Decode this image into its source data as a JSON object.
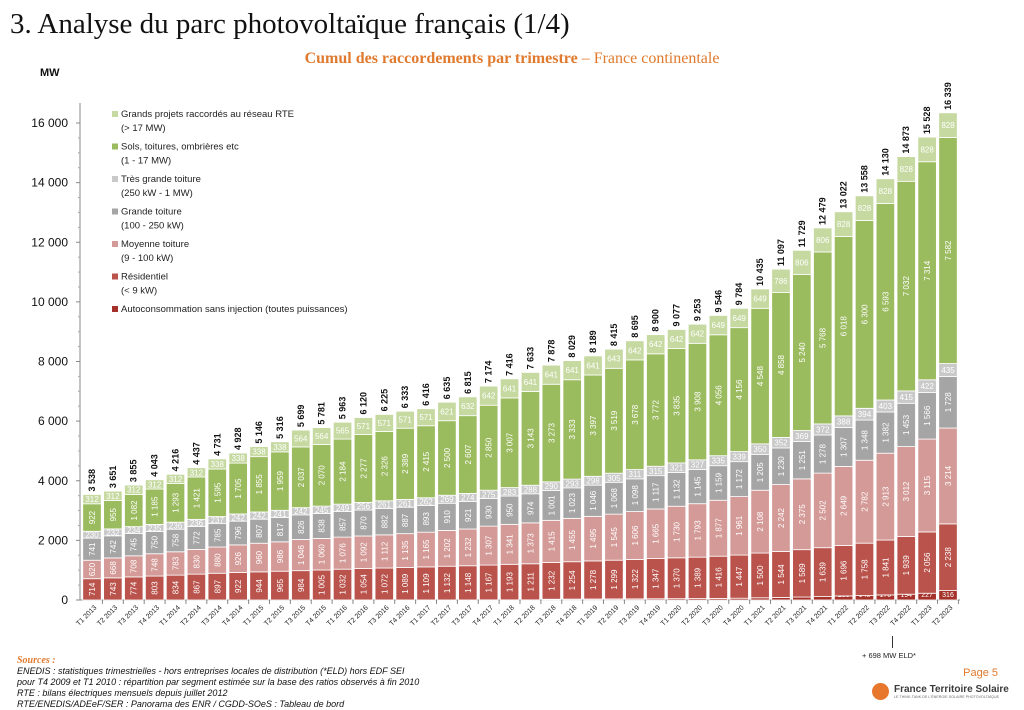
{
  "title": "3. Analyse du parc photovoltaïque français (1/4)",
  "subtitle": {
    "bold": "Cumul des raccordements par trimestre",
    "rest": " – France continentale"
  },
  "footer": {
    "sources_label": "Sources :",
    "sources": [
      "ENEDIS : statistiques trimestrielles - hors entreprises locales de distribution (*ELD) hors EDF SEI",
      "pour T4 2009 et T1 2010 : répartition par segment estimée sur la base des ratios observés à fin 2010",
      "RTE : bilans électriques mensuels depuis juillet 2012",
      "RTE/ENEDIS/ADEeF/SER : Panorama des ENR /  CGDD-SOeS : Tableau de bord"
    ],
    "page": "Page 5",
    "logo_name": "France Territoire Solaire",
    "logo_tagline": "LE THINK-TANK DE L'ÉNERGIE SOLAIRE PHOTOVOLTAÏQUE"
  },
  "chart_data": {
    "type": "bar",
    "stacked": true,
    "ylabel": "MW",
    "ylim": [
      0,
      16000
    ],
    "yticks": [
      0,
      2000,
      4000,
      6000,
      8000,
      10000,
      12000,
      14000,
      16000
    ],
    "grid": false,
    "legend_position": "top-left",
    "annotation": {
      "category": "T3 2022",
      "text": "+ 698 MW ELD*"
    },
    "categories": [
      "T1 2013",
      "T2 2013",
      "T3 2013",
      "T4 2013",
      "T1 2014",
      "T2 2014",
      "T3 2014",
      "T4 2014",
      "T1 2015",
      "T2 2015",
      "T3 2015",
      "T4 2015",
      "T1 2016",
      "T2 2016",
      "T3 2016",
      "T4 2016",
      "T1 2017",
      "T2 2017",
      "T3 2017",
      "T4 2017",
      "T1 2018",
      "T2 2018",
      "T3 2018",
      "T4 2018",
      "T1 2019",
      "T2 2019",
      "T3 2019",
      "T4 2019",
      "T1 2020",
      "T2 2020",
      "T3 2020",
      "T4 2020",
      "T1 2021",
      "T2 2021",
      "T3 2021",
      "T4 2021",
      "T1 2022",
      "T2 2022",
      "T3 2022",
      "T4 2022",
      "T1 2023",
      "T2 2023"
    ],
    "series": [
      {
        "name": "Autoconsommation sans injection (toutes puissances)",
        "color": "#a5322a",
        "values": [
          0,
          0,
          0,
          0,
          0,
          0,
          0,
          0,
          0,
          0,
          0,
          1,
          1,
          1,
          1,
          1,
          1,
          1,
          1,
          4,
          4,
          4,
          26,
          30,
          33,
          36,
          38,
          42,
          45,
          48,
          53,
          60,
          74,
          85,
          99,
          115,
          136,
          148,
          170,
          194,
          227,
          316
        ]
      },
      {
        "name": "Résidentiel\n(< 9 kW)",
        "color": "#b9534c",
        "values": [
          714,
          743,
          774,
          803,
          834,
          867,
          897,
          922,
          944,
          965,
          984,
          1005,
          1032,
          1054,
          1072,
          1089,
          1109,
          1132,
          1148,
          1167,
          1193,
          1211,
          1232,
          1254,
          1278,
          1299,
          1322,
          1347,
          1370,
          1389,
          1416,
          1447,
          1500,
          1544,
          1589,
          1639,
          1696,
          1758,
          1841,
          1939,
          2056,
          2238
        ]
      },
      {
        "name": "Moyenne toiture\n(9 - 100 kW)",
        "color": "#d49a97",
        "values": [
          620,
          668,
          708,
          748,
          783,
          830,
          880,
          926,
          960,
          986,
          1046,
          1060,
          1076,
          1092,
          1112,
          1135,
          1165,
          1202,
          1232,
          1307,
          1341,
          1373,
          1415,
          1455,
          1495,
          1545,
          1606,
          1665,
          1730,
          1793,
          1877,
          1961,
          2108,
          2242,
          2375,
          2502,
          2649,
          2782,
          2913,
          3012,
          3115,
          3214
        ]
      },
      {
        "name": "Grande toiture\n(100 - 250 kW)",
        "color": "#a5a5a5",
        "values": [
          741,
          742,
          745,
          750,
          758,
          772,
          785,
          796,
          807,
          817,
          826,
          838,
          857,
          870,
          882,
          887,
          893,
          910,
          921,
          930,
          950,
          974,
          1001,
          1023,
          1046,
          1068,
          1098,
          1117,
          1132,
          1145,
          1159,
          1172,
          1205,
          1230,
          1251,
          1278,
          1307,
          1348,
          1382,
          1453,
          1566,
          1728
        ]
      },
      {
        "name": "Très grande toiture\n(250 kW - 1 MW)",
        "color": "#c9c9c9",
        "values": [
          230,
          232,
          234,
          235,
          236,
          236,
          237,
          242,
          242,
          241,
          242,
          245,
          249,
          256,
          261,
          261,
          262,
          269,
          274,
          275,
          283,
          288,
          290,
          293,
          298,
          305,
          311,
          315,
          321,
          327,
          335,
          339,
          350,
          352,
          369,
          372,
          388,
          394,
          403,
          415,
          422,
          435
        ]
      },
      {
        "name": "Sols, toitures, ombrières etc\n(1 - 17 MW)",
        "color": "#9bbb5f",
        "values": [
          922,
          955,
          1082,
          1185,
          1293,
          1421,
          1595,
          1705,
          1855,
          1959,
          2037,
          2070,
          2184,
          2277,
          2326,
          2389,
          2415,
          2500,
          2607,
          2850,
          3007,
          3143,
          3273,
          3333,
          3397,
          3519,
          3678,
          3772,
          3835,
          3908,
          4056,
          4156,
          4548,
          4858,
          5240,
          5768,
          6018,
          6300,
          6593,
          7032,
          7314,
          7582
        ]
      },
      {
        "name": "Grands projets raccordés au réseau RTE\n(> 17 MW)",
        "color": "#c6d9a0",
        "values": [
          312,
          312,
          312,
          312,
          312,
          312,
          338,
          338,
          338,
          338,
          564,
          564,
          565,
          571,
          571,
          571,
          571,
          621,
          632,
          642,
          641,
          641,
          641,
          641,
          641,
          643,
          642,
          642,
          642,
          642,
          649,
          649,
          649,
          786,
          806,
          806,
          828,
          828,
          828,
          828,
          828,
          828
        ]
      }
    ],
    "totals": [
      3538,
      3651,
      3855,
      4043,
      4216,
      4437,
      4731,
      4928,
      5146,
      5316,
      5699,
      5781,
      5963,
      6120,
      6225,
      6333,
      6416,
      6635,
      6815,
      7174,
      7416,
      7633,
      7878,
      8029,
      8189,
      8415,
      8695,
      8900,
      9077,
      9253,
      9546,
      9784,
      10435,
      11097,
      11729,
      12479,
      13022,
      13558,
      14130,
      14873,
      15528,
      16339
    ]
  }
}
